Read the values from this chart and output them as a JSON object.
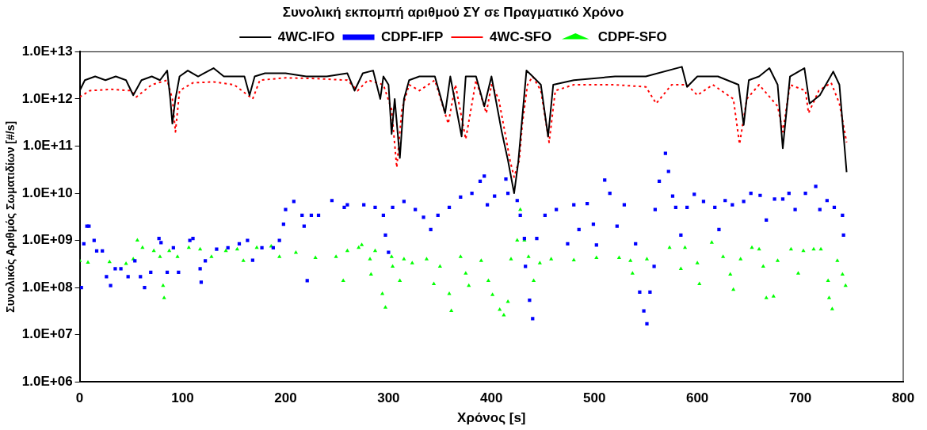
{
  "chart_data": {
    "type": "line",
    "title": "Συνολική εκπομπή αριθμού ΣΥ σε Πραγματικό Χρόνο",
    "xlabel": "Χρόνος [s]",
    "ylabel": "Συνολικός Αριθμός Σωματιδίων [#/s]",
    "log": "y",
    "grid": false,
    "legend": "top",
    "xlim": [
      0,
      800
    ],
    "xticks": [
      0,
      100,
      200,
      300,
      400,
      500,
      600,
      700,
      800
    ],
    "ylim": [
      1000000.0,
      10000000000000.0
    ],
    "yticks": [
      {
        "value": 1000000.0,
        "label": "1.0E+06"
      },
      {
        "value": 10000000.0,
        "label": "1.0E+07"
      },
      {
        "value": 100000000.0,
        "label": "1.0E+08"
      },
      {
        "value": 1000000000.0,
        "label": "1.0E+09"
      },
      {
        "value": 10000000000.0,
        "label": "1.0E+10"
      },
      {
        "value": 100000000000.0,
        "label": "1.0E+11"
      },
      {
        "value": 1000000000000.0,
        "label": "1.0E+12"
      },
      {
        "value": 10000000000000.0,
        "label": "1.0E+13"
      }
    ],
    "series": [
      {
        "name": "4WC-IFO",
        "type": "line",
        "color": "#000000",
        "marker": "none",
        "line_style": "solid",
        "x": [
          0,
          5,
          15,
          25,
          35,
          45,
          52,
          60,
          70,
          78,
          85,
          88,
          90,
          93,
          97,
          105,
          115,
          130,
          140,
          150,
          160,
          165,
          170,
          180,
          200,
          220,
          240,
          260,
          267,
          275,
          285,
          292,
          295,
          300,
          303,
          306,
          311,
          315,
          320,
          330,
          345,
          355,
          360,
          371,
          375,
          385,
          393,
          400,
          410,
          416,
          422,
          426,
          434,
          440,
          448,
          455,
          460,
          480,
          520,
          550,
          585,
          590,
          600,
          620,
          640,
          645,
          650,
          660,
          670,
          678,
          683,
          690,
          704,
          709,
          719,
          732,
          738,
          745
        ],
        "values": [
          1500000000000.0,
          2500000000000.0,
          3000000000000.0,
          2500000000000.0,
          3000000000000.0,
          2500000000000.0,
          1200000000000.0,
          2500000000000.0,
          3000000000000.0,
          2500000000000.0,
          4000000000000.0,
          1000000000000.0,
          300000000000.0,
          1000000000000.0,
          3000000000000.0,
          4000000000000.0,
          3000000000000.0,
          4500000000000.0,
          3000000000000.0,
          3000000000000.0,
          3000000000000.0,
          1200000000000.0,
          3000000000000.0,
          3500000000000.0,
          3500000000000.0,
          3000000000000.0,
          3000000000000.0,
          3500000000000.0,
          1500000000000.0,
          3500000000000.0,
          4000000000000.0,
          1000000000000.0,
          3000000000000.0,
          2000000000000.0,
          180000000000.0,
          1000000000000.0,
          56000000000.0,
          1000000000000.0,
          2500000000000.0,
          3000000000000.0,
          3000000000000.0,
          500000000000.0,
          3000000000000.0,
          160000000000.0,
          3000000000000.0,
          3000000000000.0,
          700000000000.0,
          3000000000000.0,
          200000000000.0,
          50000000000.0,
          10000000000.0,
          45000000000.0,
          4000000000000.0,
          3000000000000.0,
          2000000000000.0,
          160000000000.0,
          2000000000000.0,
          2500000000000.0,
          3000000000000.0,
          3000000000000.0,
          4800000000000.0,
          1800000000000.0,
          3000000000000.0,
          3000000000000.0,
          2000000000000.0,
          280000000000.0,
          2500000000000.0,
          3000000000000.0,
          4500000000000.0,
          2000000000000.0,
          90000000000.0,
          3000000000000.0,
          4500000000000.0,
          800000000000.0,
          1200000000000.0,
          3800000000000.0,
          2000000000000.0,
          28000000000.0
        ]
      },
      {
        "name": "CDPF-IFP",
        "type": "scatter",
        "color": "#0000ff",
        "marker": "square",
        "x": [
          1.6,
          4,
          7,
          9,
          14,
          16.5,
          22,
          26,
          30,
          34.5,
          40,
          47,
          53.6,
          59,
          63,
          69,
          77,
          79,
          85,
          91,
          96,
          107,
          110,
          117,
          118,
          122,
          133,
          144,
          155,
          163,
          168,
          177,
          188,
          194,
          198,
          200,
          208,
          216,
          218,
          221,
          225,
          232,
          245,
          257,
          260,
          276,
          287,
          295,
          297,
          300,
          304,
          315,
          326,
          334,
          341,
          348,
          359,
          370,
          381,
          389,
          393,
          396,
          403,
          414,
          416,
          425,
          428,
          432,
          433,
          437,
          440,
          444,
          452,
          463,
          474,
          480,
          485,
          493,
          499,
          502,
          510,
          515,
          522,
          529,
          540,
          544,
          548,
          551,
          554,
          558,
          559,
          563,
          569,
          572,
          576,
          579,
          584,
          590,
          597,
          606,
          617,
          621,
          627,
          634,
          645,
          652,
          661,
          667,
          675,
          683,
          689,
          695,
          705,
          715,
          719,
          726,
          733,
          741,
          742
        ],
        "values": [
          100000000.0,
          850000000.0,
          2000000000.0,
          2000000000.0,
          1000000000.0,
          600000000.0,
          600000000.0,
          170000000.0,
          110000000.0,
          250000000.0,
          250000000.0,
          170000000.0,
          370000000.0,
          170000000.0,
          100000000.0,
          210000000.0,
          1100000000.0,
          900000000.0,
          210000000.0,
          700000000.0,
          210000000.0,
          1000000000.0,
          1100000000.0,
          250000000.0,
          130000000.0,
          370000000.0,
          650000000.0,
          700000000.0,
          850000000.0,
          1000000000.0,
          380000000.0,
          700000000.0,
          700000000.0,
          1000000000.0,
          2200000000.0,
          4500000000.0,
          6700000000.0,
          3400000000.0,
          2000000000.0,
          140000000.0,
          3400000000.0,
          3400000000.0,
          7000000000.0,
          5000000000.0,
          5700000000.0,
          5700000000.0,
          5000000000.0,
          3400000000.0,
          1300000000.0,
          560000000.0,
          5000000000.0,
          6700000000.0,
          4500000000.0,
          3100000000.0,
          1700000000.0,
          3400000000.0,
          5000000000.0,
          8300000000.0,
          10000000000.0,
          18000000000.0,
          23000000000.0,
          5700000000.0,
          8700000000.0,
          20000000000.0,
          10000000000.0,
          7000000000.0,
          3400000000.0,
          1100000000.0,
          280000000.0,
          54000000.0,
          22000000.0,
          1100000000.0,
          3400000000.0,
          4500000000.0,
          850000000.0,
          5700000000.0,
          1700000000.0,
          6000000000.0,
          2200000000.0,
          800000000.0,
          19000000000.0,
          10000000000.0,
          2000000000.0,
          5700000000.0,
          850000000.0,
          80000000.0,
          32000000.0,
          17000000.0,
          80000000.0,
          280000000.0,
          4500000000.0,
          18000000000.0,
          70000000000.0,
          29000000000.0,
          8700000000.0,
          5000000000.0,
          1300000000.0,
          5000000000.0,
          9500000000.0,
          6700000000.0,
          5000000000.0,
          1700000000.0,
          7000000000.0,
          5700000000.0,
          6700000000.0,
          10000000000.0,
          9000000000.0,
          2700000000.0,
          7500000000.0,
          7500000000.0,
          10000000000.0,
          4500000000.0,
          10000000000.0,
          14000000000.0,
          4500000000.0,
          7000000000.0,
          5000000000.0,
          3400000000.0,
          1300000000.0
        ]
      },
      {
        "name": "4WC-SFO",
        "type": "line",
        "color": "#ff0000",
        "marker": "none",
        "line_style": "dotted",
        "x": [
          0,
          10,
          30,
          50,
          55,
          70,
          85,
          90,
          93,
          97,
          110,
          130,
          150,
          168,
          175,
          200,
          230,
          260,
          270,
          280,
          295,
          303,
          308,
          313,
          320,
          330,
          345,
          358,
          365,
          375,
          385,
          395,
          400,
          407,
          413,
          418,
          422,
          427,
          430,
          435,
          440,
          448,
          456,
          462,
          480,
          520,
          550,
          560,
          575,
          590,
          600,
          615,
          635,
          641,
          648,
          660,
          678,
          683,
          690,
          705,
          708,
          718,
          730,
          738,
          745
        ],
        "values": [
          1100000000000.0,
          1500000000000.0,
          1600000000000.0,
          1500000000000.0,
          1100000000000.0,
          2000000000000.0,
          2500000000000.0,
          1000000000000.0,
          200000000000.0,
          1500000000000.0,
          2200000000000.0,
          2300000000000.0,
          2000000000000.0,
          1000000000000.0,
          2500000000000.0,
          2800000000000.0,
          2700000000000.0,
          2500000000000.0,
          1500000000000.0,
          2500000000000.0,
          2000000000000.0,
          600000000000.0,
          35000000000.0,
          600000000000.0,
          2000000000000.0,
          1500000000000.0,
          2500000000000.0,
          300000000000.0,
          2000000000000.0,
          140000000000.0,
          2500000000000.0,
          500000000000.0,
          2000000000000.0,
          1000000000000.0,
          200000000000.0,
          50000000000.0,
          22000000000.0,
          50000000000.0,
          300000000000.0,
          2000000000000.0,
          3000000000000.0,
          1500000000000.0,
          120000000000.0,
          1500000000000.0,
          2000000000000.0,
          2000000000000.0,
          1800000000000.0,
          800000000000.0,
          2000000000000.0,
          2000000000000.0,
          1200000000000.0,
          2000000000000.0,
          1000000000000.0,
          110000000000.0,
          1000000000000.0,
          2000000000000.0,
          700000000000.0,
          200000000000.0,
          2000000000000.0,
          1500000000000.0,
          500000000000.0,
          1500000000000.0,
          2200000000000.0,
          800000000000.0,
          120000000000.0
        ]
      },
      {
        "name": "CDPF-SFO",
        "type": "scatter",
        "color": "#00ff00",
        "marker": "triangle",
        "x": [
          0,
          8,
          29,
          45,
          52,
          56,
          61,
          72,
          78,
          81,
          82,
          87,
          95,
          106,
          117,
          128,
          142,
          153,
          159,
          172,
          186,
          194,
          210,
          229,
          249,
          256,
          260,
          271,
          274,
          282,
          283,
          287,
          294,
          297,
          303,
          304,
          311,
          315,
          323,
          337,
          344,
          350,
          359,
          361,
          370,
          375,
          378,
          390,
          397,
          401,
          408,
          412,
          416,
          419,
          425,
          428,
          432,
          436,
          441,
          447,
          458,
          480,
          502,
          524,
          535,
          537,
          551,
          573,
          584,
          588,
          600,
          602,
          614,
          625,
          632,
          635,
          642,
          653,
          660,
          664,
          667,
          674,
          678,
          691,
          698,
          703,
          713,
          720,
          727,
          728,
          731,
          736,
          741,
          744
        ],
        "values": [
          370000000.0,
          340000000.0,
          350000000.0,
          320000000.0,
          400000000.0,
          1000000000.0,
          700000000.0,
          600000000.0,
          450000000.0,
          110000000.0,
          60000000.0,
          600000000.0,
          450000000.0,
          700000000.0,
          650000000.0,
          450000000.0,
          600000000.0,
          650000000.0,
          370000000.0,
          700000000.0,
          750000000.0,
          450000000.0,
          550000000.0,
          430000000.0,
          450000000.0,
          140000000.0,
          600000000.0,
          700000000.0,
          800000000.0,
          400000000.0,
          190000000.0,
          600000000.0,
          74000000.0,
          38000000.0,
          450000000.0,
          280000000.0,
          140000000.0,
          400000000.0,
          330000000.0,
          400000000.0,
          120000000.0,
          280000000.0,
          74000000.0,
          32000000.0,
          450000000.0,
          200000000.0,
          110000000.0,
          370000000.0,
          140000000.0,
          70000000.0,
          34000000.0,
          26000000.0,
          50000000.0,
          400000000.0,
          1000000000.0,
          4500000000.0,
          1000000000.0,
          450000000.0,
          140000000.0,
          330000000.0,
          400000000.0,
          380000000.0,
          430000000.0,
          430000000.0,
          370000000.0,
          200000000.0,
          400000000.0,
          700000000.0,
          250000000.0,
          700000000.0,
          330000000.0,
          120000000.0,
          900000000.0,
          450000000.0,
          190000000.0,
          90000000.0,
          400000000.0,
          700000000.0,
          650000000.0,
          280000000.0,
          60000000.0,
          65000000.0,
          370000000.0,
          650000000.0,
          200000000.0,
          600000000.0,
          650000000.0,
          650000000.0,
          140000000.0,
          60000000.0,
          35000000.0,
          370000000.0,
          190000000.0,
          110000000.0
        ]
      }
    ]
  }
}
